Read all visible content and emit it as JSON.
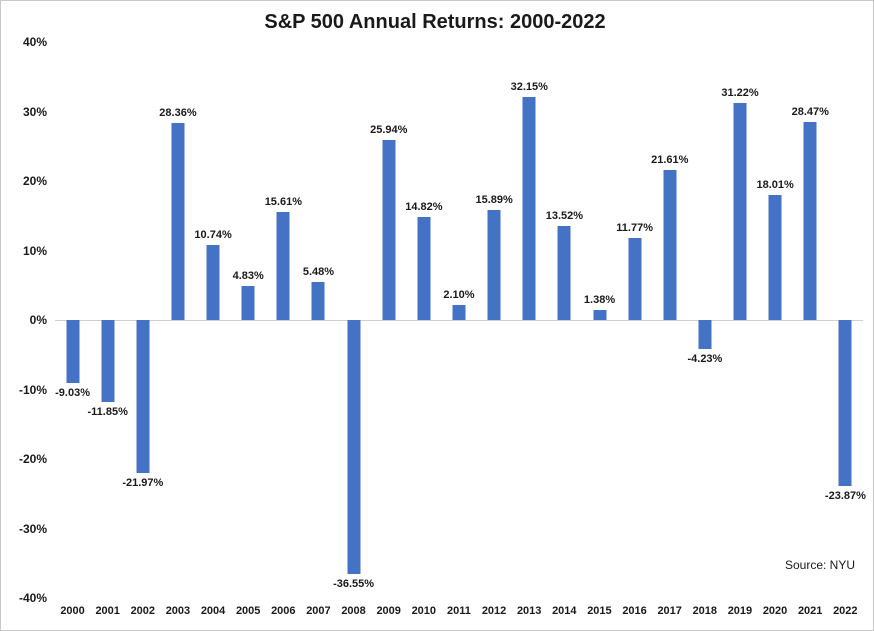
{
  "chart_data": {
    "type": "bar",
    "title": "S&P 500 Annual Returns: 2000-2022",
    "source": "Source: NYU",
    "categories": [
      "2000",
      "2001",
      "2002",
      "2003",
      "2004",
      "2005",
      "2006",
      "2007",
      "2008",
      "2009",
      "2010",
      "2011",
      "2012",
      "2013",
      "2014",
      "2015",
      "2016",
      "2017",
      "2018",
      "2019",
      "2020",
      "2021",
      "2022"
    ],
    "values": [
      -9.03,
      -11.85,
      -21.97,
      28.36,
      10.74,
      4.83,
      15.61,
      5.48,
      -36.55,
      25.94,
      14.82,
      2.1,
      15.89,
      32.15,
      13.52,
      1.38,
      11.77,
      21.61,
      -4.23,
      31.22,
      18.01,
      28.47,
      -23.87
    ],
    "labels": [
      "-9.03%",
      "-11.85%",
      "-21.97%",
      "28.36%",
      "10.74%",
      "4.83%",
      "15.61%",
      "5.48%",
      "-36.55%",
      "25.94%",
      "14.82%",
      "2.10%",
      "15.89%",
      "32.15%",
      "13.52%",
      "1.38%",
      "11.77%",
      "21.61%",
      "-4.23%",
      "31.22%",
      "18.01%",
      "28.47%",
      "-23.87%"
    ],
    "ylim": [
      -40,
      40
    ],
    "y_ticks": [
      "40%",
      "30%",
      "20%",
      "10%",
      "0%",
      "-10%",
      "-20%",
      "-30%",
      "-40%"
    ],
    "bar_color": "#4472C4",
    "grid": false,
    "legend": "none"
  }
}
